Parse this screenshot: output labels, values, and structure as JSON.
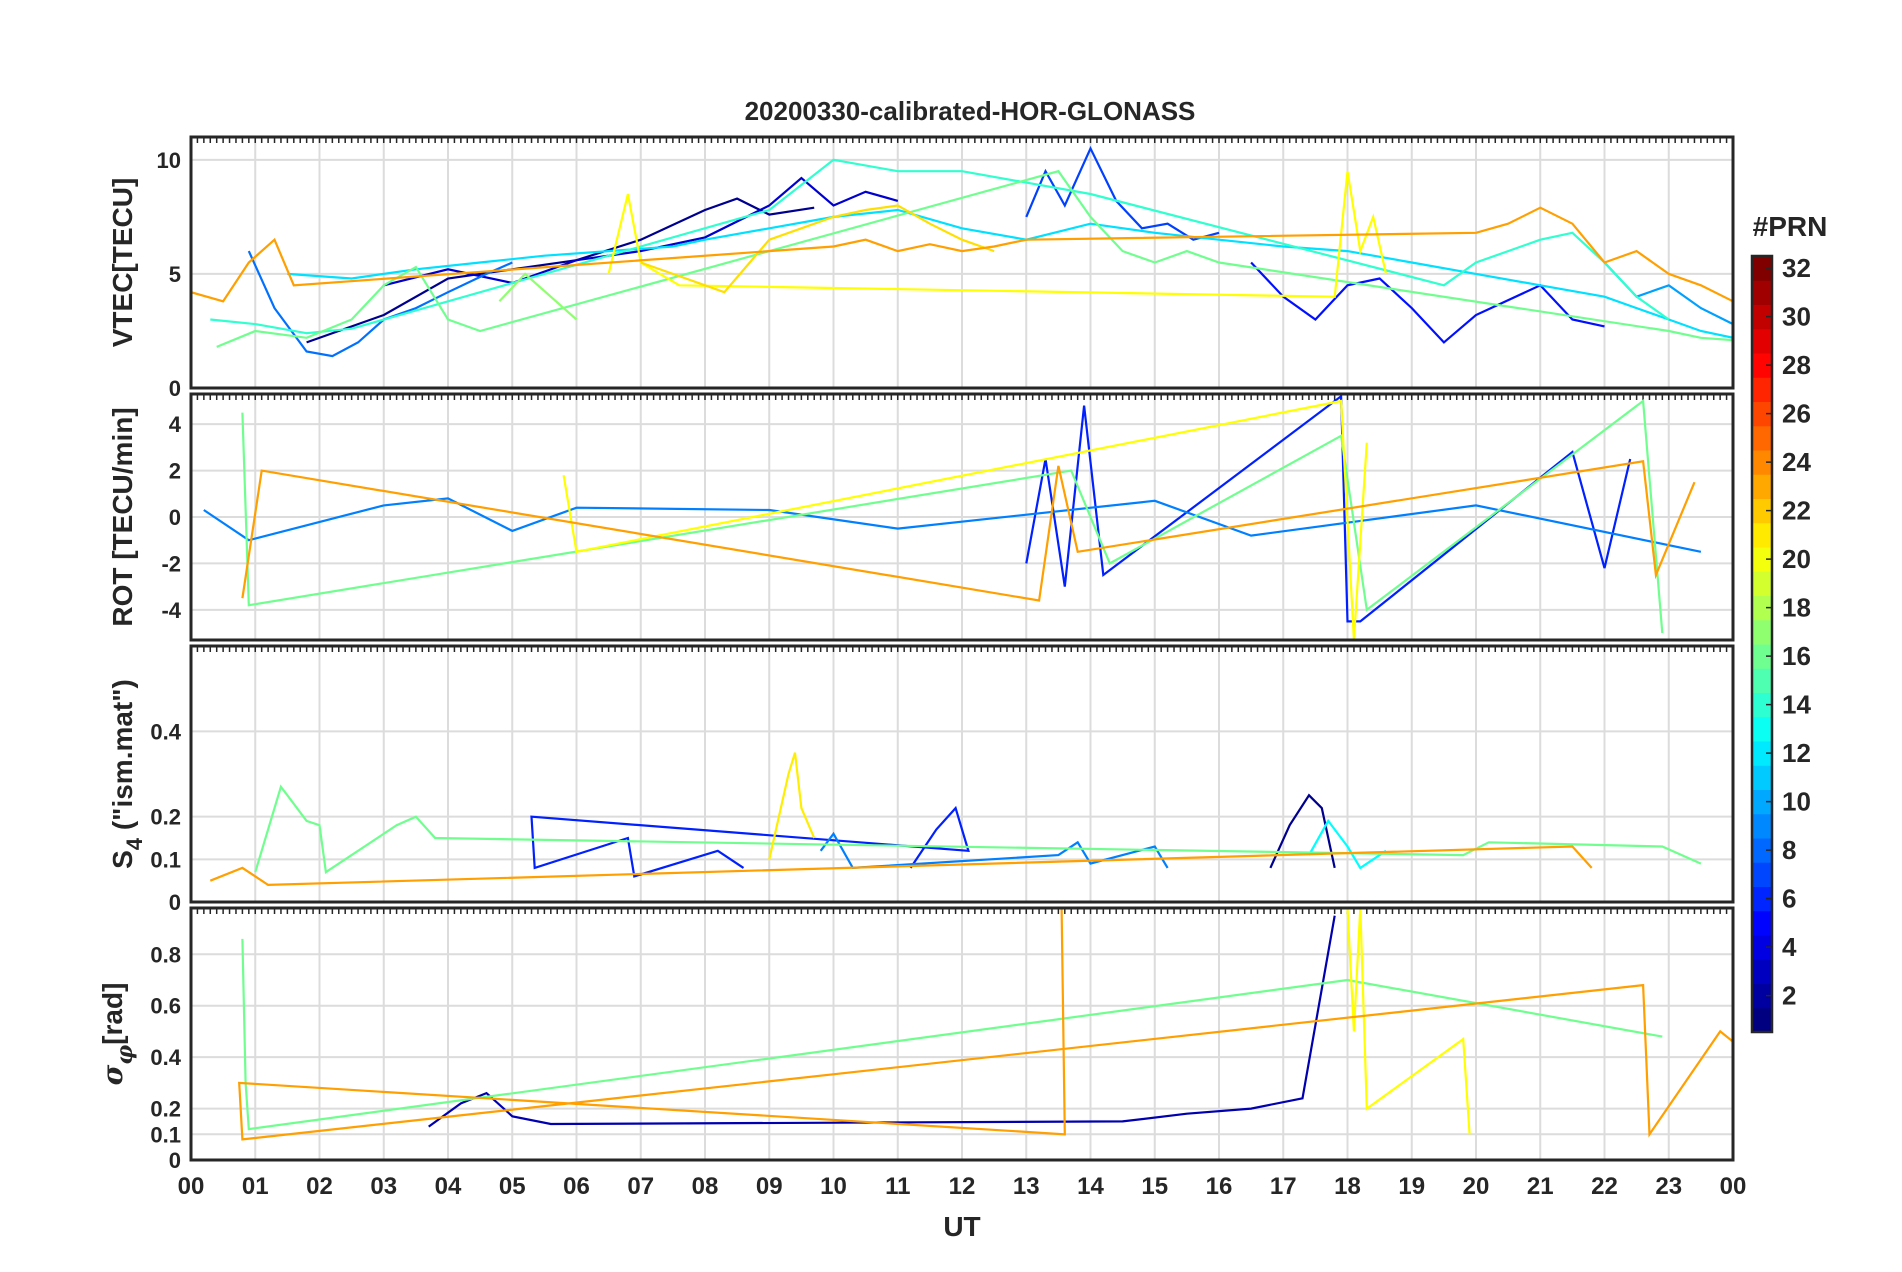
{
  "chart_data": {
    "type": "line",
    "title": "20200330-calibrated-HOR-GLONASS",
    "xlabel": "UT",
    "x_tick_labels": [
      "00",
      "01",
      "02",
      "03",
      "04",
      "05",
      "06",
      "07",
      "08",
      "09",
      "10",
      "11",
      "12",
      "13",
      "14",
      "15",
      "16",
      "17",
      "18",
      "19",
      "20",
      "21",
      "22",
      "23",
      "00"
    ],
    "x_range_hours": [
      0,
      24
    ],
    "grid": true,
    "colorbar": {
      "title": "#PRN",
      "range": [
        1,
        32
      ],
      "tick_labels": [
        "2",
        "4",
        "6",
        "8",
        "10",
        "12",
        "14",
        "16",
        "18",
        "20",
        "22",
        "24",
        "26",
        "28",
        "30",
        "32"
      ],
      "colormap": "jet"
    },
    "panels": [
      {
        "id": "vtec",
        "ylabel": "VTEC[TECU]",
        "ylim": [
          0,
          11
        ],
        "y_ticks": [
          0,
          5,
          10
        ],
        "y_tick_labels": [
          "0",
          "5",
          "10"
        ],
        "series": [
          {
            "prn": 1,
            "color": "#00008f",
            "x": [
              1.8,
              3.0,
              4.0,
              5.0,
              6.0,
              7.0,
              8.0,
              8.5,
              9.0,
              9.7
            ],
            "y": [
              2.0,
              3.2,
              4.8,
              5.2,
              5.6,
              6.5,
              7.8,
              8.3,
              7.6,
              7.9
            ]
          },
          {
            "prn": 3,
            "color": "#0000cf",
            "x": [
              3.0,
              4.0,
              5.0,
              6.0,
              7.0,
              8.0,
              9.0,
              9.5,
              10.0,
              10.5,
              11.0
            ],
            "y": [
              4.5,
              5.2,
              4.6,
              5.6,
              6.0,
              6.6,
              8.0,
              9.2,
              8.0,
              8.6,
              8.2
            ]
          },
          {
            "prn": 5,
            "color": "#0010ff",
            "x": [
              16.5,
              17.0,
              17.5,
              18.0,
              18.5,
              19.0,
              19.5,
              20.0,
              21.0,
              21.5,
              22.0
            ],
            "y": [
              5.5,
              4.0,
              3.0,
              4.5,
              4.8,
              3.5,
              2.0,
              3.2,
              4.5,
              3.0,
              2.7
            ]
          },
          {
            "prn": 6,
            "color": "#0040ff",
            "x": [
              13.0,
              13.3,
              13.6,
              14.0,
              14.4,
              14.8,
              15.2,
              15.6,
              16.0
            ],
            "y": [
              7.5,
              9.5,
              8.0,
              10.5,
              8.2,
              7.0,
              7.2,
              6.5,
              6.8
            ]
          },
          {
            "prn": 7,
            "color": "#0070ff",
            "x": [
              0.9,
              1.3,
              1.8,
              2.2,
              2.6,
              3.0,
              3.5,
              4.0,
              4.6,
              5.0
            ],
            "y": [
              6.0,
              3.5,
              1.6,
              1.4,
              2.0,
              3.0,
              3.5,
              4.2,
              5.0,
              5.5
            ]
          },
          {
            "prn": 8,
            "color": "#00a0ff",
            "x": [
              22.0,
              22.5,
              23.0,
              23.5,
              24.0
            ],
            "y": [
              5.5,
              4.0,
              4.5,
              3.5,
              2.8
            ]
          },
          {
            "prn": 12,
            "color": "#00e0ff",
            "x": [
              1.5,
              2.5,
              3.5,
              4.5,
              5.5,
              6.5,
              7.5,
              8.0,
              9.0,
              10.0,
              11.0,
              12.0,
              13.0,
              14.0,
              15.0,
              16.0,
              17.0,
              18.0,
              19.0,
              20.0,
              21.0,
              22.0,
              22.5,
              23.0,
              23.5,
              24.0
            ],
            "y": [
              5.0,
              4.8,
              5.2,
              5.5,
              5.8,
              6.0,
              6.2,
              6.5,
              7.0,
              7.5,
              7.8,
              7.0,
              6.5,
              7.2,
              6.8,
              6.5,
              6.2,
              6.0,
              5.5,
              5.0,
              4.5,
              4.0,
              3.5,
              3.0,
              2.5,
              2.2
            ]
          },
          {
            "prn": 14,
            "color": "#30ffcf",
            "x": [
              0.3,
              1.0,
              1.8,
              2.5,
              9.0,
              10.0,
              11.0,
              12.0,
              13.0,
              14.0,
              19.5,
              20.0,
              21.0,
              21.5,
              22.0,
              22.5,
              23.0
            ],
            "y": [
              3.0,
              2.8,
              2.4,
              2.6,
              7.8,
              10.0,
              9.5,
              9.5,
              9.0,
              8.5,
              4.5,
              5.5,
              6.5,
              6.8,
              5.5,
              4.0,
              3.0
            ]
          },
          {
            "prn": 16,
            "color": "#70ff8f",
            "x": [
              0.4,
              1.0,
              1.8,
              2.5,
              3.0,
              3.5,
              4.0,
              4.5,
              13.5,
              14.0,
              14.5,
              15.0,
              15.5,
              16.0,
              23.0,
              23.5,
              24.0
            ],
            "y": [
              1.8,
              2.5,
              2.2,
              3.0,
              4.5,
              5.3,
              3.0,
              2.5,
              9.5,
              7.5,
              6.0,
              5.5,
              6.0,
              5.5,
              2.5,
              2.2,
              2.1
            ]
          },
          {
            "prn": 17,
            "color": "#8fff70",
            "x": [
              4.8,
              5.2,
              5.6,
              6.0
            ],
            "y": [
              3.8,
              5.0,
              4.0,
              3.0
            ]
          },
          {
            "prn": 19,
            "color": "#ffff00",
            "x": [
              6.5,
              6.8,
              7.0,
              7.3,
              7.6,
              17.8,
              18.0,
              18.2,
              18.4,
              18.6
            ],
            "y": [
              5.0,
              8.5,
              5.5,
              5.0,
              4.5,
              4.0,
              9.5,
              6.0,
              7.5,
              5.0
            ]
          },
          {
            "prn": 20,
            "color": "#ffdf00",
            "x": [
              7.0,
              7.5,
              8.0,
              8.3,
              9.0,
              9.5,
              10.0,
              10.5,
              11.0,
              11.5,
              12.0,
              12.5
            ],
            "y": [
              5.5,
              5.0,
              4.5,
              4.2,
              6.5,
              7.0,
              7.5,
              7.8,
              8.0,
              7.2,
              6.5,
              6.0
            ]
          },
          {
            "prn": 22,
            "color": "#ff9f00",
            "x": [
              0.0,
              0.5,
              0.9,
              1.3,
              1.6,
              10.0,
              10.5,
              11.0,
              11.5,
              12.0,
              12.5,
              13.0,
              20.0,
              20.5,
              21.0,
              21.5,
              22.0,
              22.5,
              23.0,
              23.5,
              24.0
            ],
            "y": [
              4.2,
              3.8,
              5.5,
              6.5,
              4.5,
              6.2,
              6.5,
              6.0,
              6.3,
              6.0,
              6.2,
              6.5,
              6.8,
              7.2,
              7.9,
              7.2,
              5.5,
              6.0,
              5.0,
              4.5,
              3.8
            ]
          }
        ]
      },
      {
        "id": "rot",
        "ylabel": "ROT [TECU/min]",
        "ylim": [
          -5.3,
          5.3
        ],
        "y_ticks": [
          -4,
          -2,
          0,
          2,
          4
        ],
        "y_tick_labels": [
          "-4",
          "-2",
          "0",
          "2",
          "4"
        ],
        "series": [
          {
            "prn": 4,
            "color": "#0020ff",
            "x": [
              13.0,
              13.3,
              13.6,
              13.9,
              14.2,
              17.9,
              18.0,
              18.2,
              21.5,
              22.0,
              22.4
            ],
            "y": [
              -2.0,
              2.5,
              -3.0,
              4.8,
              -2.5,
              5.2,
              -4.5,
              -4.5,
              2.8,
              -2.2,
              2.5
            ]
          },
          {
            "prn": 9,
            "color": "#0080ff",
            "x": [
              0.2,
              0.9,
              3.0,
              4.0,
              5.0,
              6.0,
              9.0,
              11.0,
              15.0,
              16.5,
              20.0,
              23.5
            ],
            "y": [
              0.3,
              -1.0,
              0.5,
              0.8,
              -0.6,
              0.4,
              0.3,
              -0.5,
              0.7,
              -0.8,
              0.5,
              -1.5
            ]
          },
          {
            "prn": 16,
            "color": "#70ff8f",
            "x": [
              0.8,
              0.9,
              13.7,
              14.3,
              17.9,
              18.3,
              22.6,
              22.9
            ],
            "y": [
              4.5,
              -3.8,
              2.0,
              -2.0,
              3.5,
              -4.0,
              5.0,
              -5.0
            ]
          },
          {
            "prn": 19,
            "color": "#ffff00",
            "x": [
              5.8,
              6.0,
              17.9,
              18.1,
              18.3
            ],
            "y": [
              1.8,
              -1.5,
              5.0,
              -5.3,
              3.2
            ]
          },
          {
            "prn": 22,
            "color": "#ff9f00",
            "x": [
              0.8,
              1.1,
              13.2,
              13.5,
              13.8,
              22.6,
              22.8,
              23.4
            ],
            "y": [
              -3.5,
              2.0,
              -3.6,
              2.2,
              -1.5,
              2.4,
              -2.5,
              1.5
            ]
          }
        ]
      },
      {
        "id": "s4",
        "ylabel": "S4 (\"ism.mat\")",
        "ylabel_main": "S",
        "ylabel_sub": "4",
        "ylabel_rest": " (\"ism.mat\")",
        "ylim": [
          0,
          0.6
        ],
        "y_ticks": [
          0,
          0.1,
          0.2,
          0.4
        ],
        "y_tick_labels": [
          "0",
          "0.1",
          "0.2",
          "0.4"
        ],
        "series": [
          {
            "prn": 1,
            "color": "#00008f",
            "x": [
              16.8,
              17.1,
              17.4,
              17.6,
              17.8
            ],
            "y": [
              0.08,
              0.18,
              0.25,
              0.22,
              0.08
            ]
          },
          {
            "prn": 4,
            "color": "#0020ff",
            "x": [
              11.2,
              11.6,
              11.9,
              12.1,
              5.3,
              5.35,
              6.8,
              6.9,
              8.2,
              8.6
            ],
            "y": [
              0.08,
              0.17,
              0.22,
              0.12,
              0.2,
              0.08,
              0.15,
              0.06,
              0.12,
              0.08
            ]
          },
          {
            "prn": 9,
            "color": "#0080ff",
            "x": [
              9.8,
              10.0,
              10.3,
              13.5,
              13.8,
              14.0,
              15.0,
              15.2
            ],
            "y": [
              0.12,
              0.16,
              0.08,
              0.11,
              0.14,
              0.09,
              0.13,
              0.08
            ]
          },
          {
            "prn": 13,
            "color": "#00ffff",
            "x": [
              17.4,
              17.7,
              18.0,
              18.2,
              18.6
            ],
            "y": [
              0.11,
              0.19,
              0.13,
              0.08,
              0.12
            ]
          },
          {
            "prn": 16,
            "color": "#70ff8f",
            "x": [
              1.0,
              1.4,
              1.5,
              1.8,
              2.0,
              2.1,
              3.2,
              3.5,
              3.8,
              19.8,
              20.2,
              22.9,
              23.5
            ],
            "y": [
              0.07,
              0.27,
              0.25,
              0.19,
              0.18,
              0.07,
              0.18,
              0.2,
              0.15,
              0.11,
              0.14,
              0.13,
              0.09
            ]
          },
          {
            "prn": 19,
            "color": "#ffee00",
            "x": [
              9.0,
              9.3,
              9.4,
              9.5,
              9.7
            ],
            "y": [
              0.1,
              0.3,
              0.35,
              0.22,
              0.15
            ]
          },
          {
            "prn": 22,
            "color": "#ff9f00",
            "x": [
              0.3,
              0.8,
              1.2,
              21.5,
              21.8
            ],
            "y": [
              0.05,
              0.08,
              0.04,
              0.13,
              0.08
            ]
          }
        ]
      },
      {
        "id": "sigma_phi",
        "ylabel": "σφ[rad]",
        "ylabel_main": "σ",
        "ylabel_sub": "φ",
        "ylabel_rest": "[rad]",
        "ylim": [
          0,
          0.98
        ],
        "y_ticks": [
          0,
          0.1,
          0.2,
          0.4,
          0.6,
          0.8
        ],
        "y_tick_labels": [
          "0",
          "0.1",
          "0.2",
          "0.4",
          "0.6",
          "0.8"
        ],
        "series": [
          {
            "prn": 1,
            "color": "#0000af",
            "x": [
              3.7,
              4.2,
              4.6,
              5.0,
              5.6,
              14.5,
              15.5,
              16.5,
              17.3,
              17.8
            ],
            "y": [
              0.13,
              0.22,
              0.26,
              0.17,
              0.14,
              0.15,
              0.18,
              0.2,
              0.24,
              0.95
            ]
          },
          {
            "prn": 16,
            "color": "#70ff8f",
            "x": [
              0.8,
              0.85,
              0.9,
              18.0,
              22.9
            ],
            "y": [
              0.86,
              0.3,
              0.12,
              0.7,
              0.48
            ]
          },
          {
            "prn": 19,
            "color": "#ffff00",
            "x": [
              18.0,
              18.1,
              18.2,
              18.3,
              19.8,
              19.9
            ],
            "y": [
              0.98,
              0.5,
              0.98,
              0.2,
              0.47,
              0.1
            ]
          },
          {
            "prn": 22,
            "color": "#ff9f00",
            "x": [
              13.55,
              13.6,
              0.75,
              0.8,
              22.6,
              22.7,
              23.8,
              24.0
            ],
            "y": [
              0.98,
              0.1,
              0.3,
              0.08,
              0.68,
              0.1,
              0.5,
              0.46
            ]
          }
        ]
      }
    ]
  }
}
